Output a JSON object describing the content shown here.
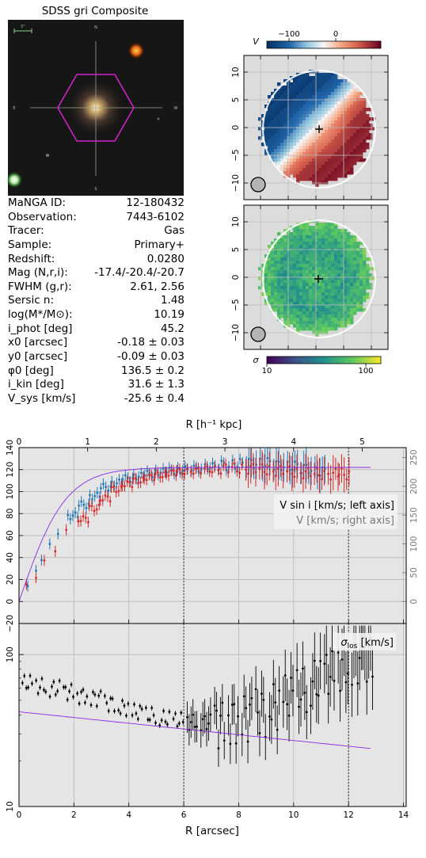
{
  "image_panel": {
    "title": "SDSS gri Composite",
    "compass_n": "N",
    "compass_e": "E",
    "compass_w": "W",
    "compass_s": "S",
    "scale_label": "5\""
  },
  "info": [
    {
      "label": "MaNGA ID:",
      "value": "12-180432"
    },
    {
      "label": "Observation:",
      "value": "7443-6102"
    },
    {
      "label": "Tracer:",
      "value": "Gas"
    },
    {
      "label": "Sample:",
      "value": "Primary+"
    },
    {
      "label": "Redshift:",
      "value": "0.0280"
    },
    {
      "label": "Mag (N,r,i):",
      "value": "-17.4/-20.4/-20.7"
    },
    {
      "label": "FWHM (g,r):",
      "value": "2.61, 2.56"
    },
    {
      "label": "Sersic n:",
      "value": "1.48"
    },
    {
      "label": "log(M*/M⊙):",
      "value": "10.19"
    },
    {
      "label": "i_phot [deg]",
      "value": "45.2"
    },
    {
      "label": "x0 [arcsec]",
      "value": "-0.18 ± 0.03"
    },
    {
      "label": "y0 [arcsec]",
      "value": "-0.09 ± 0.03"
    },
    {
      "label": "φ0 [deg]",
      "value": "136.5 ± 0.2"
    },
    {
      "label": "i_kin [deg]",
      "value": "31.6 ± 1.3"
    },
    {
      "label": "V_sys [km/s]",
      "value": "-25.6 ± 0.4"
    }
  ],
  "chart_data": [
    {
      "type": "heatmap",
      "name": "velocity-map",
      "colorbar_label": "V",
      "colorbar_ticks": [
        "−100",
        "0"
      ],
      "colorbar_range": [
        -180,
        180
      ],
      "colormap": "RdBu_r",
      "xlim": [
        -13,
        13
      ],
      "ylim": [
        -13,
        13
      ],
      "yticks": [
        -10,
        -5,
        0,
        5,
        10
      ],
      "grid": true
    },
    {
      "type": "heatmap",
      "name": "dispersion-map",
      "colorbar_label": "σ",
      "colorbar_ticks": [
        "10",
        "100"
      ],
      "colorbar_range": [
        10,
        180
      ],
      "colorbar_scale": "log",
      "colormap": "viridis",
      "xlim": [
        -13,
        13
      ],
      "ylim": [
        -13,
        13
      ],
      "yticks": [
        -10,
        -5,
        0,
        5,
        10
      ],
      "grid": true
    },
    {
      "type": "scatter",
      "name": "rotation-curve",
      "xlabel": "R [arcsec]",
      "top_xlabel": "R [h⁻¹ kpc]",
      "top_xticks": [
        0,
        1,
        2,
        3,
        4,
        5
      ],
      "xlim": [
        0,
        14.1
      ],
      "ylim": [
        -20,
        140
      ],
      "yticks": [
        -20,
        0,
        20,
        40,
        60,
        80,
        100,
        120,
        140
      ],
      "right_yticks": [
        0,
        50,
        100,
        150,
        200,
        250
      ],
      "vlines": [
        6,
        12
      ],
      "legend": [
        "V sin i [km/s; left axis]",
        "V [km/s; right axis]"
      ],
      "model": {
        "vmax": 122,
        "rt": 1.7
      },
      "series": [
        {
          "name": "V sin i (approaching)",
          "color": "#1f77b4",
          "points": [
            [
              0.5,
              14
            ],
            [
              0.8,
              28
            ],
            [
              1.0,
              38
            ],
            [
              1.3,
              52
            ],
            [
              1.6,
              62
            ],
            [
              2.0,
              78
            ],
            [
              2.4,
              88
            ],
            [
              2.8,
              96
            ],
            [
              3.2,
              104
            ],
            [
              3.6,
              108
            ],
            [
              4.0,
              112
            ],
            [
              4.4,
              114
            ],
            [
              4.8,
              116
            ],
            [
              5.2,
              118
            ],
            [
              5.6,
              119
            ],
            [
              6.0,
              120
            ],
            [
              6.5,
              121
            ],
            [
              7.0,
              123
            ],
            [
              7.5,
              124
            ],
            [
              8.0,
              125
            ],
            [
              8.5,
              126
            ],
            [
              9.0,
              126
            ],
            [
              9.5,
              124
            ],
            [
              10.0,
              123
            ],
            [
              10.5,
              121
            ],
            [
              11.0,
              118
            ]
          ]
        },
        {
          "name": "V sin i (receding)",
          "color": "#d62728",
          "points": [
            [
              0.45,
              13
            ],
            [
              0.8,
              24
            ],
            [
              1.1,
              35
            ],
            [
              1.5,
              48
            ],
            [
              1.9,
              63
            ],
            [
              2.3,
              75
            ],
            [
              2.7,
              85
            ],
            [
              3.1,
              94
            ],
            [
              3.5,
              102
            ],
            [
              3.9,
              107
            ],
            [
              4.3,
              110
            ],
            [
              4.7,
              113
            ],
            [
              5.1,
              115
            ],
            [
              5.5,
              117
            ],
            [
              5.9,
              118
            ],
            [
              6.4,
              119
            ],
            [
              6.9,
              120
            ],
            [
              7.4,
              121
            ],
            [
              7.9,
              121
            ],
            [
              8.4,
              121
            ],
            [
              8.9,
              120
            ],
            [
              9.4,
              119
            ],
            [
              9.9,
              118
            ],
            [
              10.4,
              117
            ],
            [
              10.9,
              116
            ],
            [
              11.4,
              116
            ],
            [
              11.8,
              116
            ]
          ]
        }
      ]
    },
    {
      "type": "scatter",
      "name": "dispersion-profile",
      "xlabel": "R [arcsec]",
      "xlim": [
        0,
        14.1
      ],
      "ylim": [
        10,
        160
      ],
      "yscale": "log",
      "yticks": [
        10,
        100
      ],
      "xticks": [
        0,
        2,
        4,
        6,
        8,
        10,
        12,
        14
      ],
      "vlines": [
        6,
        12
      ],
      "legend": [
        "σ_los [km/s]"
      ],
      "model": {
        "s0": 42,
        "s1": 24
      },
      "series": [
        {
          "name": "σ_los",
          "color": "#000000",
          "points": [
            [
              0.3,
              65
            ],
            [
              0.8,
              62
            ],
            [
              1.3,
              60
            ],
            [
              1.8,
              57
            ],
            [
              2.3,
              54
            ],
            [
              2.8,
              52
            ],
            [
              3.3,
              48
            ],
            [
              3.8,
              45
            ],
            [
              4.3,
              42
            ],
            [
              4.8,
              40
            ],
            [
              5.3,
              38
            ],
            [
              5.8,
              37
            ],
            [
              6.3,
              36
            ],
            [
              6.8,
              36
            ],
            [
              7.3,
              37
            ],
            [
              7.8,
              39
            ],
            [
              8.3,
              41
            ],
            [
              8.8,
              44
            ],
            [
              9.3,
              48
            ],
            [
              9.8,
              54
            ],
            [
              10.3,
              60
            ],
            [
              10.8,
              68
            ],
            [
              11.3,
              78
            ],
            [
              11.8,
              88
            ],
            [
              12.3,
              96
            ],
            [
              12.7,
              102
            ]
          ]
        }
      ]
    }
  ]
}
